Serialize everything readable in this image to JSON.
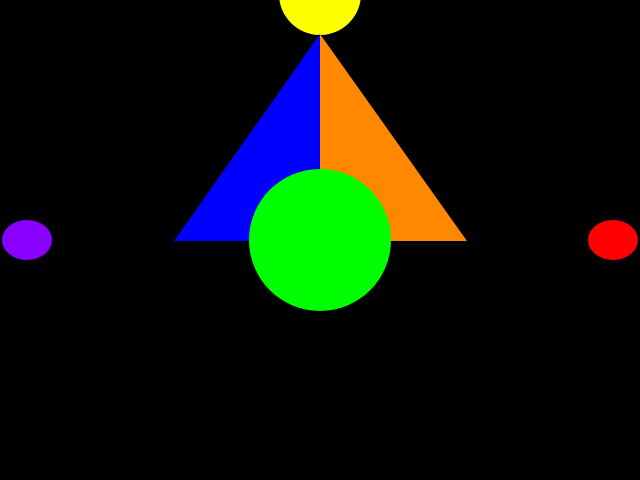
{
  "scene": {
    "background": "#000000",
    "shapes": {
      "top_circle": {
        "shape": "circle",
        "color": "#ffff00"
      },
      "triangle_left_half": {
        "shape": "triangle-half",
        "color": "#0000ff"
      },
      "triangle_right_half": {
        "shape": "triangle-half",
        "color": "#ff8800"
      },
      "center_circle": {
        "shape": "circle",
        "color": "#00ff00"
      },
      "left_ellipse": {
        "shape": "ellipse",
        "color": "#8800ff"
      },
      "right_ellipse": {
        "shape": "ellipse",
        "color": "#ff0000"
      }
    }
  }
}
